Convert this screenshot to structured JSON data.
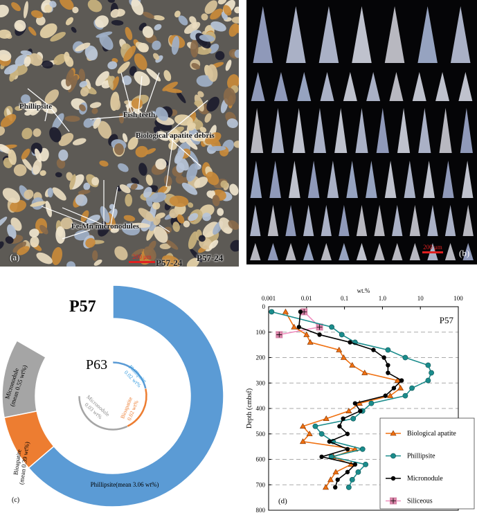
{
  "panel_a": {
    "label": "(a)",
    "annotations": [
      "Phillipsite",
      "Fish teeth",
      "Biological apatite debris",
      "Fe-Mn micronodules"
    ],
    "scale_bar": "200 μm",
    "sample": "P57-24"
  },
  "panel_b": {
    "label": "(b)",
    "scale_bar": "200 μm",
    "sample": "P57-24"
  },
  "chart_data": [
    {
      "type": "pie",
      "panel_label": "(c)",
      "rings": [
        {
          "name": "P57",
          "slices": [
            {
              "label": "Phillipsite(mean 3.06 wt%)",
              "value": 3.06,
              "color": "#5b9bd5"
            },
            {
              "label_lines": [
                "Bioapatite",
                "(mean 0.39 wt%)"
              ],
              "value": 0.39,
              "color": "#ed7d31"
            },
            {
              "label_lines": [
                "Micronodule",
                "(mean 0.55 wt%)"
              ],
              "value": 0.55,
              "color": "#a5a5a5"
            }
          ]
        },
        {
          "name": "P63",
          "slices": [
            {
              "label_lines": [
                "Phillipsite",
                "0.02 wt%"
              ],
              "value": 0.02,
              "color": "#5b9bd5"
            },
            {
              "label_lines": [
                "Bioapatite",
                "0.02 wt%"
              ],
              "value": 0.02,
              "color": "#ed7d31"
            },
            {
              "label_lines": [
                "Micronodule",
                "0.03 wt%"
              ],
              "value": 0.03,
              "color": "#a5a5a5"
            }
          ]
        }
      ]
    },
    {
      "type": "line",
      "panel_label": "(d)",
      "title": "P57",
      "xlabel": "wt.%",
      "ylabel": "Depth (cmbsf)",
      "xscale": "log",
      "xlim": [
        0.001,
        100
      ],
      "ylim": [
        0,
        800
      ],
      "y_inverted": true,
      "x_ticks": [
        "0.001",
        "0.01",
        "0.1",
        "1.0",
        "10",
        "100"
      ],
      "y_ticks": [
        "0",
        "100",
        "200",
        "300",
        "400",
        "500",
        "600",
        "700",
        "800"
      ],
      "grid": "horizontal dashed",
      "legend_position": "bottom-right",
      "series": [
        {
          "name": "Biological apatite",
          "color": "#f07010",
          "marker": "triangle",
          "depth": [
            20,
            80,
            110,
            140,
            170,
            200,
            230,
            260,
            290,
            320,
            350,
            380,
            410,
            440,
            470,
            500,
            530,
            560,
            590,
            620,
            650,
            680,
            710
          ],
          "wt": [
            0.0028,
            0.0047,
            0.01,
            0.0125,
            0.072,
            0.095,
            0.16,
            0.34,
            2.5,
            3.0,
            1.6,
            0.25,
            0.13,
            0.033,
            0.008,
            0.012,
            0.008,
            0.19,
            0.051,
            0.15,
            0.059,
            0.043,
            0.032
          ]
        },
        {
          "name": "Phillipsite",
          "color": "#1a8c8c",
          "marker": "circle",
          "depth": [
            20,
            80,
            110,
            140,
            170,
            200,
            230,
            260,
            290,
            320,
            350,
            380,
            410,
            440,
            470,
            500,
            530,
            560,
            590,
            620,
            650,
            680,
            710
          ],
          "wt": [
            0.0012,
            0.046,
            0.085,
            0.19,
            1.4,
            4.0,
            16,
            19.5,
            16,
            6.0,
            4.0,
            0.51,
            0.3,
            0.17,
            0.017,
            0.025,
            0.05,
            0.3,
            0.045,
            0.36,
            0.23,
            0.16,
            0.13
          ]
        },
        {
          "name": "Micronodule",
          "color": "#000000",
          "marker": "dot",
          "depth": [
            20,
            80,
            110,
            140,
            170,
            200,
            230,
            260,
            290,
            320,
            350,
            380,
            410,
            440,
            470,
            500,
            530,
            560,
            590,
            620,
            650,
            680,
            710
          ],
          "wt": [
            0.0069,
            0.0063,
            0.022,
            0.14,
            0.58,
            1.1,
            1.4,
            1.4,
            3.2,
            2.0,
            1.2,
            0.19,
            0.26,
            0.092,
            0.074,
            0.12,
            0.04,
            0.12,
            0.025,
            0.19,
            0.12,
            0.066,
            0.057
          ]
        },
        {
          "name": "Siliceous",
          "color": "#f090c0",
          "marker": "square-plus",
          "depth": [
            20,
            80,
            110
          ],
          "wt": [
            0.0086,
            0.022,
            0.0019
          ]
        }
      ]
    }
  ]
}
